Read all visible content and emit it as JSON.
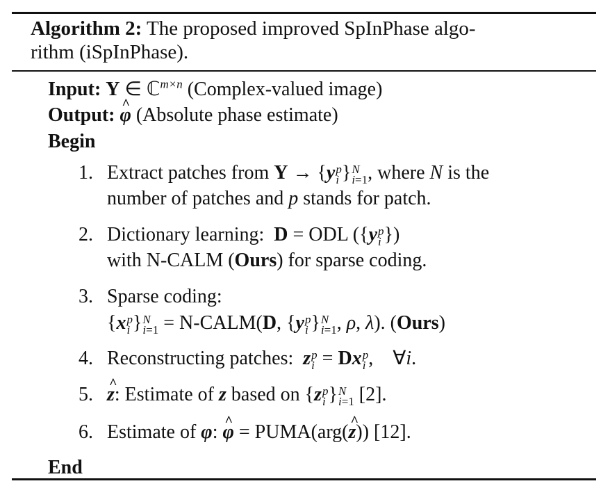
{
  "algorithm": {
    "label": "Algorithm 2:",
    "title_line1": "The proposed improved SpInPhase algo-",
    "title_line2": "rithm (iSpInPhase)."
  },
  "input": {
    "label": "Input:",
    "symbol": "Y",
    "set": "ℂ",
    "dims": "m×n",
    "desc": "(Complex-valued image)"
  },
  "output": {
    "label": "Output:",
    "symbol": "φ",
    "desc": "(Absolute phase estimate)"
  },
  "begin": "Begin",
  "end": "End",
  "steps": [
    {
      "num": "1.",
      "text_a": "Extract patches from",
      "text_b": ", where",
      "text_c": "is the",
      "line2": "number of patches and",
      "line2_b": "stands for patch."
    },
    {
      "num": "2.",
      "text_a": "Dictionary learning:",
      "text_b": "= ODL (",
      "line2_a": "with N-CALM (",
      "ours": "Ours",
      "line2_b": ") for sparse coding."
    },
    {
      "num": "3.",
      "text_a": "Sparse coding:",
      "fn": "N-CALM",
      "ours": "Ours"
    },
    {
      "num": "4.",
      "text_a": "Reconstructing patches:"
    },
    {
      "num": "5.",
      "text_a": ": Estimate of",
      "text_b": "based on",
      "ref": "[2]."
    },
    {
      "num": "6.",
      "text_a": "Estimate of",
      "fn": "PUMA",
      "arg": "arg",
      "ref": "[12]."
    }
  ]
}
